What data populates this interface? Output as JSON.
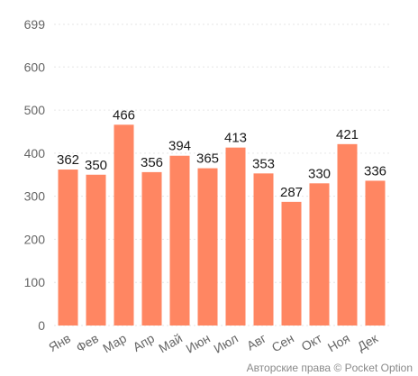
{
  "chart_data": {
    "type": "bar",
    "categories": [
      "Янв",
      "Фев",
      "Мар",
      "Апр",
      "Май",
      "Июн",
      "Июл",
      "Авг",
      "Сен",
      "Окт",
      "Ноя",
      "Дек"
    ],
    "values": [
      362,
      350,
      466,
      356,
      394,
      365,
      413,
      353,
      287,
      330,
      421,
      336
    ],
    "ylim": [
      0,
      699
    ],
    "yticks": [
      0,
      100,
      200,
      300,
      400,
      500,
      600,
      699
    ],
    "bar_color": "#ff8662",
    "grid": true,
    "data_labels": true,
    "title": "",
    "xlabel": "",
    "ylabel": ""
  },
  "credit": "Авторские права © Pocket Option"
}
